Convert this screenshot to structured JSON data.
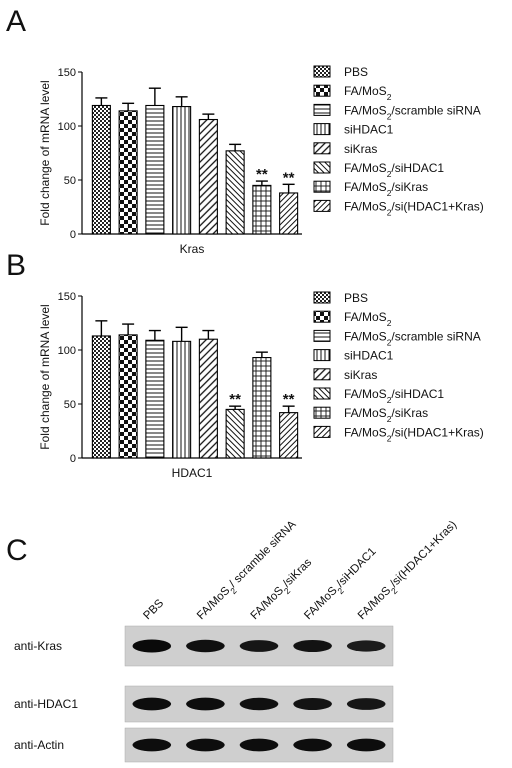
{
  "chart_data": [
    {
      "panel": "A",
      "type": "bar",
      "xlabel": "Kras",
      "ylabel": "Fold change of mRNA level",
      "ylim": [
        0,
        150
      ],
      "yticks": [
        "0",
        "50",
        "100",
        "150"
      ],
      "grid": false,
      "legend_position": "right",
      "categories": [
        "PBS",
        "FA/MoS₂",
        "FA/MoS₂/scramble siRNA",
        "siHDAC1",
        "siKras",
        "FA/MoS₂/siHDAC1",
        "FA/MoS₂/siKras",
        "FA/MoS₂/si(HDAC1+Kras)"
      ],
      "values": [
        119,
        114,
        119,
        118,
        106,
        77,
        45,
        38
      ],
      "errors": [
        7,
        7,
        16,
        9,
        5,
        6,
        4,
        8
      ],
      "annotations": [
        "",
        "",
        "",
        "",
        "",
        "",
        "**",
        "**"
      ]
    },
    {
      "panel": "B",
      "type": "bar",
      "xlabel": "HDAC1",
      "ylabel": "Fold change of mRNA level",
      "ylim": [
        0,
        150
      ],
      "yticks": [
        "0",
        "50",
        "100",
        "150"
      ],
      "grid": false,
      "legend_position": "right",
      "categories": [
        "PBS",
        "FA/MoS₂",
        "FA/MoS₂/scramble siRNA",
        "siHDAC1",
        "siKras",
        "FA/MoS₂/siHDAC1",
        "FA/MoS₂/siKras",
        "FA/MoS₂/si(HDAC1+Kras)"
      ],
      "values": [
        113,
        114,
        109,
        108,
        110,
        45,
        93,
        42
      ],
      "errors": [
        14,
        10,
        9,
        13,
        8,
        3,
        5,
        6
      ],
      "annotations": [
        "",
        "",
        "",
        "",
        "",
        "**",
        "",
        "**"
      ]
    }
  ],
  "panels": {
    "a": "A",
    "b": "B",
    "c": "C"
  },
  "legend": [
    "PBS",
    "FA/MoS₂",
    "FA/MoS₂/scramble siRNA",
    "siHDAC1",
    "siKras",
    "FA/MoS₂/siHDAC1",
    "FA/MoS₂/siKras",
    "FA/MoS₂/si(HDAC1+Kras)"
  ],
  "blot": {
    "lanes": [
      "PBS",
      "FA/MoS₂/ scramble siRNA",
      "FA/MoS₂/siKras",
      "FA/MoS₂/siHDAC1",
      "FA/MoS₂/si(HDAC1+Kras)"
    ],
    "rows": [
      {
        "label": "anti-Kras",
        "intensity": [
          1.0,
          0.9,
          0.8,
          0.85,
          0.7
        ]
      },
      {
        "label": "anti-HDAC1",
        "intensity": [
          0.95,
          0.95,
          0.9,
          0.85,
          0.8
        ]
      },
      {
        "label": "anti-Actin",
        "intensity": [
          0.95,
          0.95,
          0.95,
          0.95,
          0.95
        ]
      }
    ]
  }
}
